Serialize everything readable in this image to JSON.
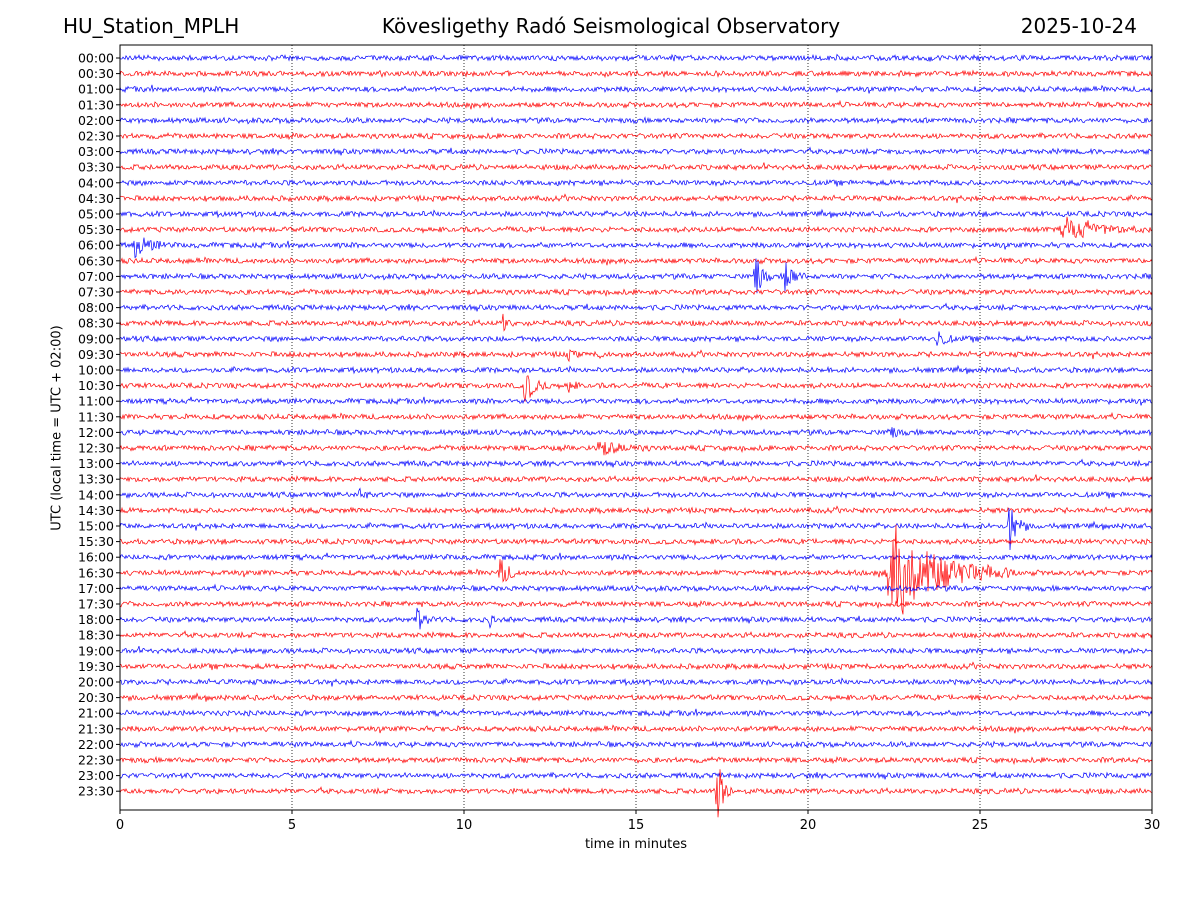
{
  "header": {
    "station": "HU_Station_MPLH",
    "observatory": "Kövesligethy Radó Seismological Observatory",
    "date": "2025-10-24"
  },
  "chart_data": {
    "type": "line",
    "title": "Kövesligethy Radó Seismological Observatory",
    "xlabel": "time in minutes",
    "ylabel": "UTC (local time = UTC + 02:00)",
    "xlim": [
      0,
      30
    ],
    "xticks": [
      0,
      5,
      10,
      15,
      20,
      25,
      30
    ],
    "grid": "vertical dotted at x ticks",
    "colors": [
      "#0000ff",
      "#ff0000"
    ],
    "traces": [
      {
        "label": "00:00",
        "color": "#0000ff",
        "events": []
      },
      {
        "label": "00:30",
        "color": "#ff0000",
        "events": []
      },
      {
        "label": "01:00",
        "color": "#0000ff",
        "events": []
      },
      {
        "label": "01:30",
        "color": "#ff0000",
        "events": []
      },
      {
        "label": "02:00",
        "color": "#0000ff",
        "events": []
      },
      {
        "label": "02:30",
        "color": "#ff0000",
        "events": []
      },
      {
        "label": "03:00",
        "color": "#0000ff",
        "events": []
      },
      {
        "label": "03:30",
        "color": "#ff0000",
        "events": []
      },
      {
        "label": "04:00",
        "color": "#0000ff",
        "events": []
      },
      {
        "label": "04:30",
        "color": "#ff0000",
        "events": []
      },
      {
        "label": "05:00",
        "color": "#0000ff",
        "events": []
      },
      {
        "label": "05:30",
        "color": "#ff0000",
        "events": [
          {
            "start": 27.3,
            "end": 30.0,
            "amplitude": 1.5
          }
        ]
      },
      {
        "label": "06:00",
        "color": "#0000ff",
        "events": [
          {
            "start": 0.35,
            "end": 1.5,
            "amplitude": 1.7
          }
        ]
      },
      {
        "label": "06:30",
        "color": "#ff0000",
        "events": []
      },
      {
        "label": "07:00",
        "color": "#0000ff",
        "events": [
          {
            "start": 18.4,
            "end": 18.9,
            "amplitude": 4.5
          },
          {
            "start": 19.3,
            "end": 19.9,
            "amplitude": 3.0
          }
        ]
      },
      {
        "label": "07:30",
        "color": "#ff0000",
        "events": []
      },
      {
        "label": "08:00",
        "color": "#0000ff",
        "events": []
      },
      {
        "label": "08:30",
        "color": "#ff0000",
        "events": [
          {
            "start": 11.1,
            "end": 11.5,
            "amplitude": 1.3
          }
        ]
      },
      {
        "label": "09:00",
        "color": "#0000ff",
        "events": [
          {
            "start": 23.7,
            "end": 24.3,
            "amplitude": 1.6
          }
        ]
      },
      {
        "label": "09:30",
        "color": "#ff0000",
        "events": [
          {
            "start": 12.9,
            "end": 13.4,
            "amplitude": 1.1
          },
          {
            "start": 13.9,
            "end": 14.1,
            "amplitude": 1.0
          }
        ]
      },
      {
        "label": "10:00",
        "color": "#0000ff",
        "events": []
      },
      {
        "label": "10:30",
        "color": "#ff0000",
        "events": [
          {
            "start": 11.7,
            "end": 12.5,
            "amplitude": 2.5
          },
          {
            "start": 13.0,
            "end": 13.4,
            "amplitude": 1.2
          }
        ]
      },
      {
        "label": "11:00",
        "color": "#0000ff",
        "events": []
      },
      {
        "label": "11:30",
        "color": "#ff0000",
        "events": []
      },
      {
        "label": "12:00",
        "color": "#0000ff",
        "events": [
          {
            "start": 22.3,
            "end": 22.8,
            "amplitude": 1.3
          }
        ]
      },
      {
        "label": "12:30",
        "color": "#ff0000",
        "events": [
          {
            "start": 13.8,
            "end": 15.5,
            "amplitude": 1.0
          }
        ]
      },
      {
        "label": "13:00",
        "color": "#0000ff",
        "events": []
      },
      {
        "label": "13:30",
        "color": "#ff0000",
        "events": []
      },
      {
        "label": "14:00",
        "color": "#0000ff",
        "events": [
          {
            "start": 6.9,
            "end": 7.3,
            "amplitude": 1.0
          }
        ]
      },
      {
        "label": "14:30",
        "color": "#ff0000",
        "events": []
      },
      {
        "label": "15:00",
        "color": "#0000ff",
        "events": [
          {
            "start": 25.8,
            "end": 26.4,
            "amplitude": 4.0
          }
        ]
      },
      {
        "label": "15:30",
        "color": "#ff0000",
        "events": []
      },
      {
        "label": "16:00",
        "color": "#0000ff",
        "events": []
      },
      {
        "label": "16:30",
        "color": "#ff0000",
        "events": [
          {
            "start": 11.0,
            "end": 11.7,
            "amplitude": 2.0
          },
          {
            "start": 22.2,
            "end": 26.0,
            "amplitude": 7.0
          }
        ]
      },
      {
        "label": "17:00",
        "color": "#0000ff",
        "events": []
      },
      {
        "label": "17:30",
        "color": "#ff0000",
        "events": []
      },
      {
        "label": "18:00",
        "color": "#0000ff",
        "events": [
          {
            "start": 8.6,
            "end": 9.2,
            "amplitude": 1.8
          },
          {
            "start": 10.7,
            "end": 10.9,
            "amplitude": 1.8
          }
        ]
      },
      {
        "label": "18:30",
        "color": "#ff0000",
        "events": []
      },
      {
        "label": "19:00",
        "color": "#0000ff",
        "events": []
      },
      {
        "label": "19:30",
        "color": "#ff0000",
        "events": []
      },
      {
        "label": "20:00",
        "color": "#0000ff",
        "events": []
      },
      {
        "label": "20:30",
        "color": "#ff0000",
        "events": []
      },
      {
        "label": "21:00",
        "color": "#0000ff",
        "events": []
      },
      {
        "label": "21:30",
        "color": "#ff0000",
        "events": []
      },
      {
        "label": "22:00",
        "color": "#0000ff",
        "events": []
      },
      {
        "label": "22:30",
        "color": "#ff0000",
        "events": []
      },
      {
        "label": "23:00",
        "color": "#0000ff",
        "events": []
      },
      {
        "label": "23:30",
        "color": "#ff0000",
        "events": [
          {
            "start": 17.3,
            "end": 17.8,
            "amplitude": 6.0
          }
        ]
      }
    ]
  }
}
